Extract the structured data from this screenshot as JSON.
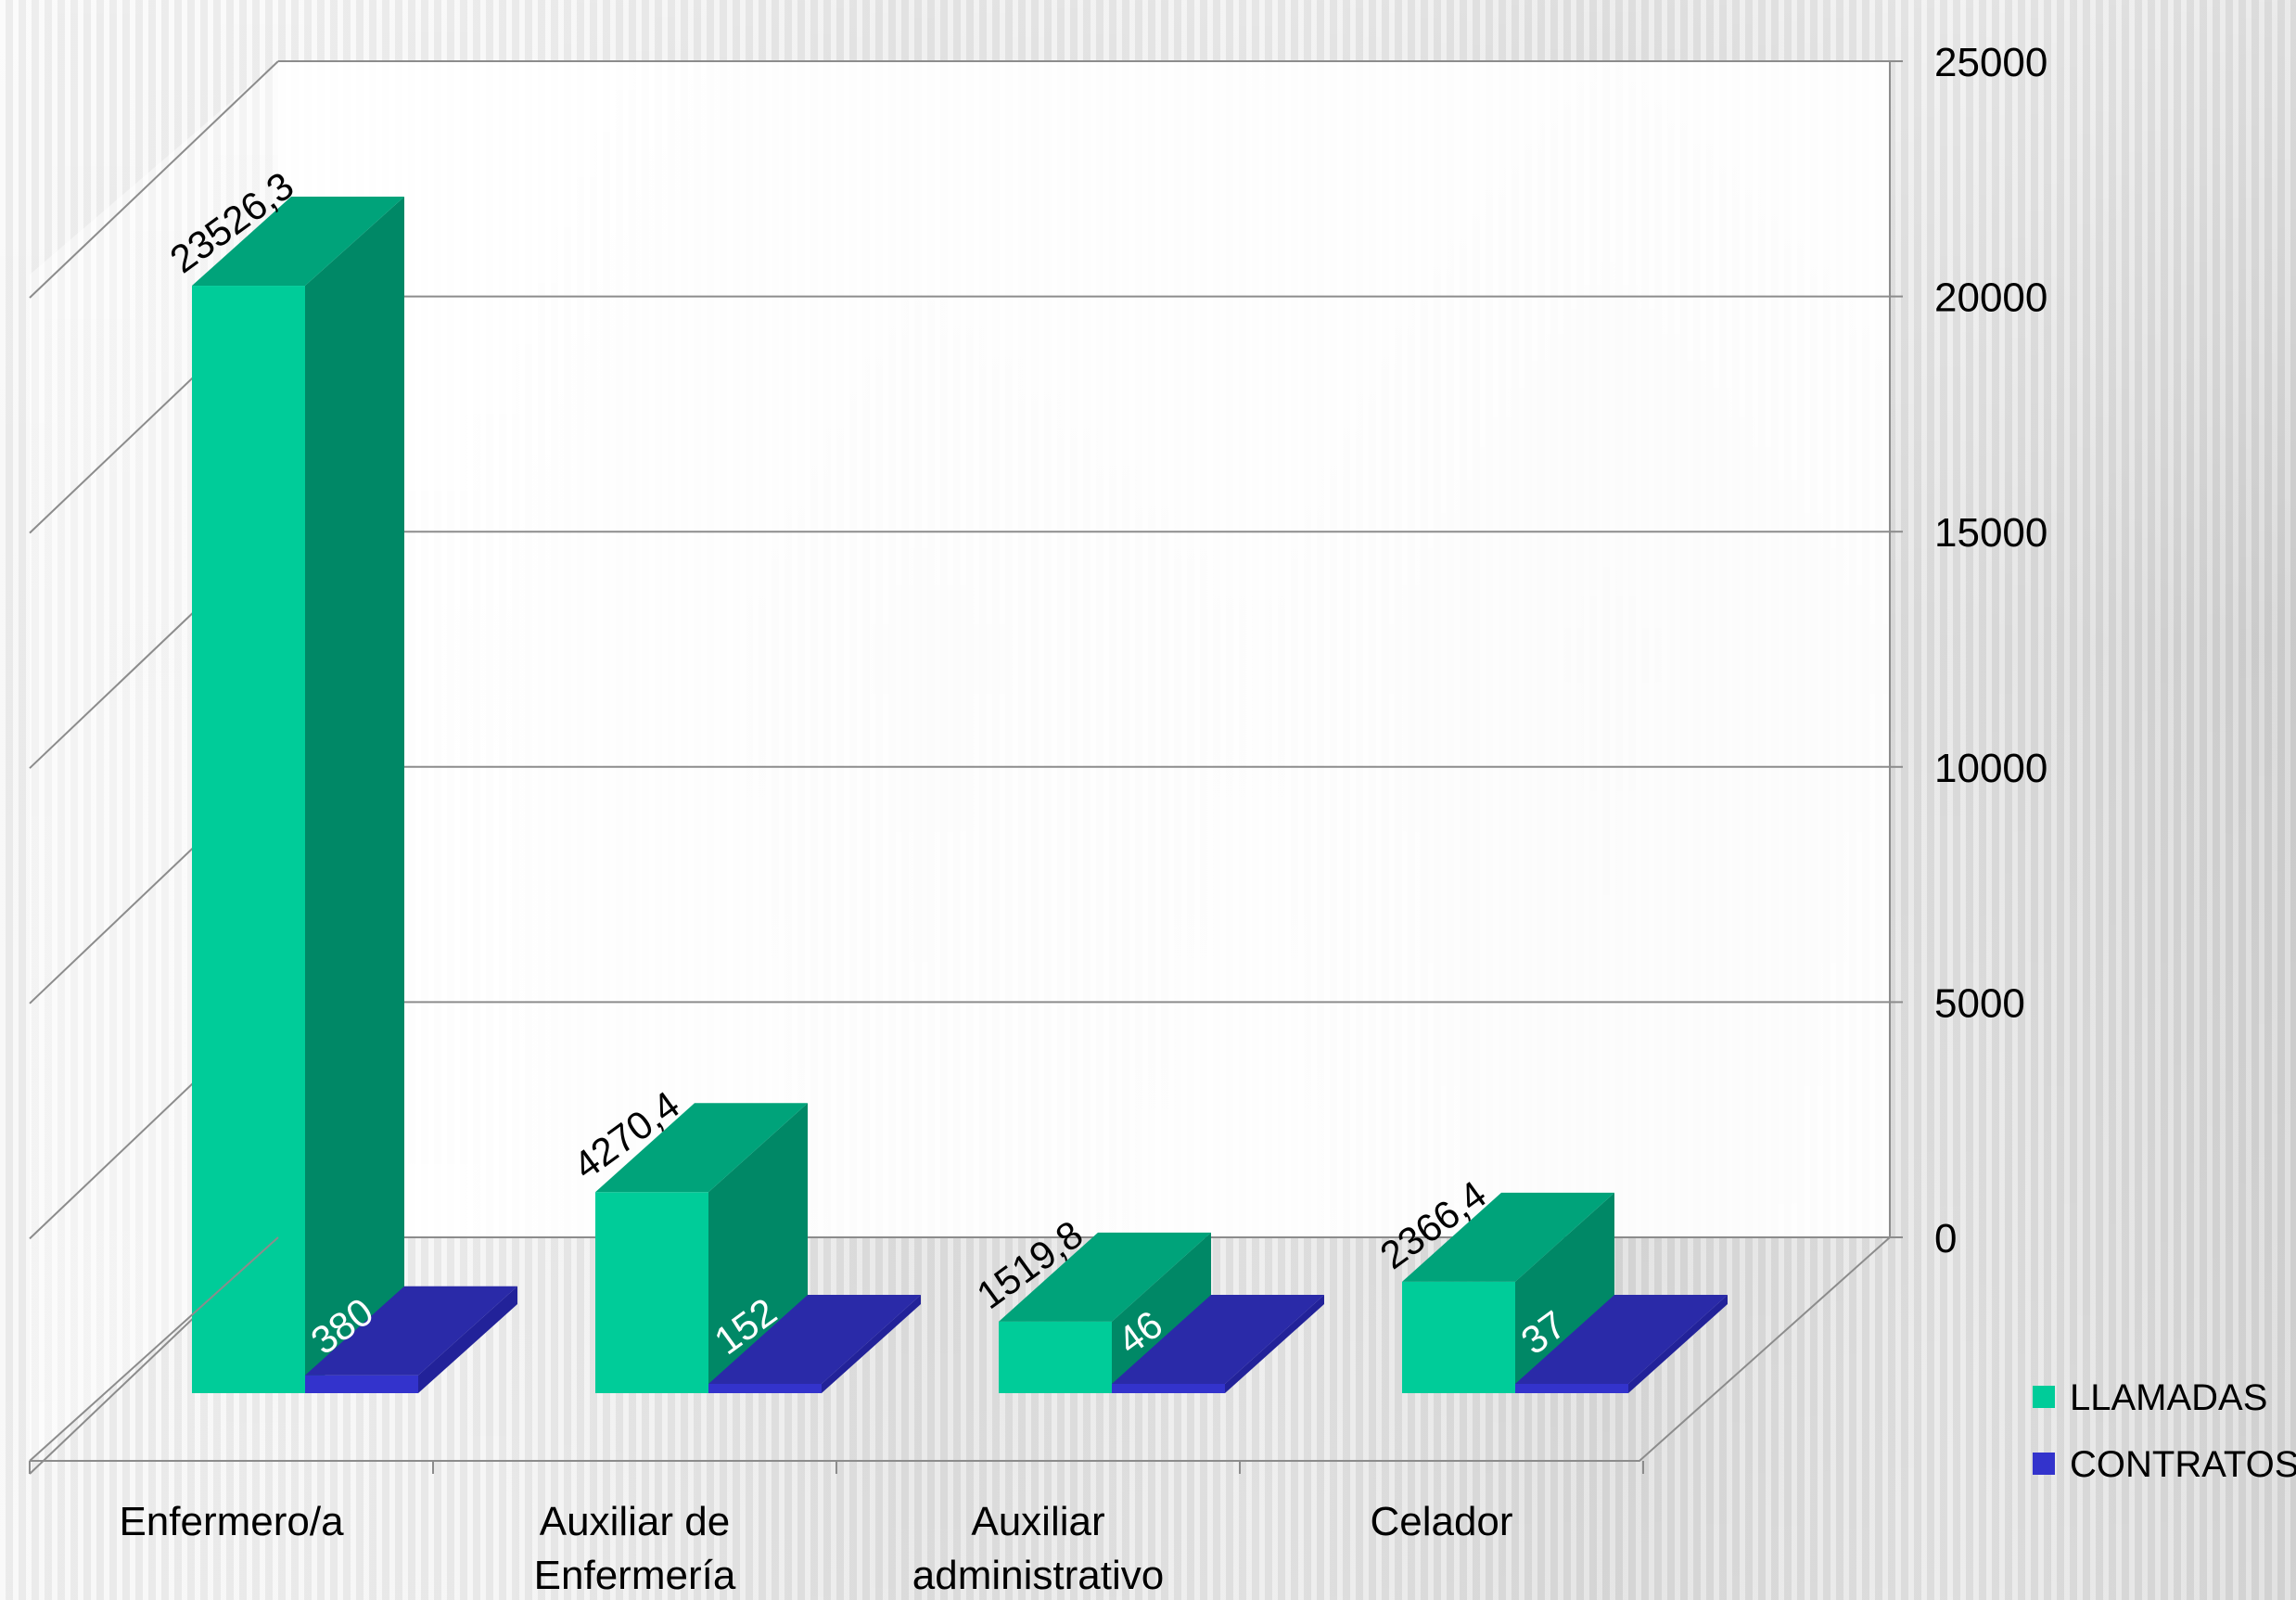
{
  "chart_data": {
    "type": "bar",
    "title": "",
    "xlabel": "",
    "ylabel": "",
    "categories": [
      [
        "Enfermero/a"
      ],
      [
        "Auxiliar de",
        "Enfermería"
      ],
      [
        "Auxiliar",
        "administrativo"
      ],
      [
        "Celador"
      ]
    ],
    "series": [
      {
        "name": "LLAMADAS",
        "values": [
          23526.3,
          4270.4,
          1519.8,
          2366.4
        ],
        "labels": [
          "23526,3",
          "4270,4",
          "1519,8",
          "2366,4"
        ],
        "color": "#00CC99",
        "side_color": "#008866",
        "top_color": "#00A37A"
      },
      {
        "name": "CONTRATOS",
        "values": [
          380,
          152,
          46,
          37
        ],
        "labels": [
          "380",
          "152",
          "46",
          "37"
        ],
        "color": "#3333CC",
        "side_color": "#222299",
        "top_color": "#2A2AA8"
      }
    ],
    "ylim": [
      0,
      25000
    ],
    "yticks": [
      "0",
      "5000",
      "10000",
      "15000",
      "20000",
      "25000"
    ],
    "grid": true,
    "legend_position": "bottom-right",
    "view": "3d-clustered"
  }
}
